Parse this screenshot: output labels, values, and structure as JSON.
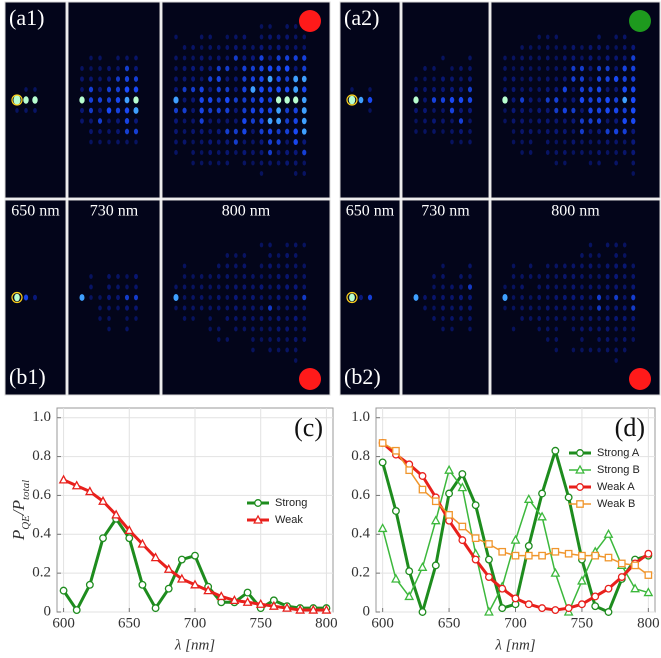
{
  "image_panels": {
    "labels": [
      "(a1)",
      "(a2)",
      "(b1)",
      "(b2)"
    ],
    "wavelengths": [
      "650 nm",
      "730 nm",
      "800 nm"
    ],
    "indicator_colors": [
      "#ff1a1a",
      "#1e9a1e",
      "#ff1a1a",
      "#ff1a1a"
    ]
  },
  "chart_data": [
    {
      "type": "line",
      "panel_label": "(c)",
      "y_label": [
        "P",
        "QE",
        "/P",
        "total"
      ],
      "x_label": "λ [nm]",
      "x": [
        600,
        610,
        620,
        630,
        640,
        650,
        660,
        670,
        680,
        690,
        700,
        710,
        720,
        730,
        740,
        750,
        760,
        770,
        780,
        790,
        800
      ],
      "series": [
        {
          "name": "Strong",
          "color": "#1e8c1e",
          "marker": "circle",
          "line_width": 3,
          "values": [
            0.11,
            0.01,
            0.14,
            0.38,
            0.48,
            0.38,
            0.14,
            0.02,
            0.12,
            0.27,
            0.29,
            0.13,
            0.05,
            0.05,
            0.1,
            0.02,
            0.06,
            0.03,
            0.02,
            0.02,
            0.02
          ]
        },
        {
          "name": "Weak",
          "color": "#e8201c",
          "marker": "triangle",
          "line_width": 3,
          "values": [
            0.68,
            0.65,
            0.62,
            0.57,
            0.5,
            0.42,
            0.35,
            0.28,
            0.22,
            0.17,
            0.14,
            0.11,
            0.08,
            0.06,
            0.05,
            0.04,
            0.03,
            0.02,
            0.01,
            0.01,
            0.01
          ]
        }
      ],
      "xlim": [
        595,
        805
      ],
      "xticks": [
        600,
        650,
        700,
        750,
        800
      ],
      "ylim": [
        0,
        1.05
      ],
      "yticks": [
        0,
        0.2,
        0.4,
        0.6,
        0.8,
        {
          "value": 1,
          "label": "1.0"
        }
      ],
      "grid": true,
      "legend": "right"
    },
    {
      "type": "line",
      "panel_label": "(d)",
      "x_label": "λ [nm]",
      "x": [
        600,
        610,
        620,
        630,
        640,
        650,
        660,
        670,
        680,
        690,
        700,
        710,
        720,
        730,
        740,
        750,
        760,
        770,
        780,
        790,
        800
      ],
      "series": [
        {
          "name": "Strong A",
          "color": "#1e8c1e",
          "marker": "circle",
          "line_width": 3,
          "values": [
            0.77,
            0.52,
            0.21,
            0.0,
            0.24,
            0.61,
            0.71,
            0.55,
            0.27,
            0.02,
            0.04,
            0.34,
            0.61,
            0.83,
            0.59,
            0.27,
            0.03,
            0.0,
            0.17,
            0.27,
            0.29
          ]
        },
        {
          "name": "Strong B",
          "color": "#3cb83c",
          "marker": "triangle",
          "line_width": 1.5,
          "values": [
            0.43,
            0.17,
            0.08,
            0.23,
            0.47,
            0.73,
            0.64,
            0.3,
            0.0,
            0.13,
            0.37,
            0.58,
            0.49,
            0.2,
            0.0,
            0.16,
            0.31,
            0.4,
            0.24,
            0.12,
            0.1
          ]
        },
        {
          "name": "Weak A",
          "color": "#e8201c",
          "marker": "circle",
          "line_width": 3,
          "values": [
            0.87,
            0.81,
            0.76,
            0.7,
            0.59,
            0.47,
            0.37,
            0.27,
            0.18,
            0.12,
            0.07,
            0.04,
            0.02,
            0.01,
            0.02,
            0.04,
            0.08,
            0.12,
            0.18,
            0.25,
            0.3
          ]
        },
        {
          "name": "Weak B",
          "color": "#f0962d",
          "marker": "square",
          "line_width": 1.5,
          "values": [
            0.87,
            0.83,
            0.73,
            0.63,
            0.57,
            0.5,
            0.44,
            0.38,
            0.35,
            0.31,
            0.29,
            0.29,
            0.29,
            0.31,
            0.3,
            0.29,
            0.29,
            0.28,
            0.25,
            0.24,
            0.19
          ]
        }
      ],
      "xlim": [
        595,
        805
      ],
      "xticks": [
        600,
        650,
        700,
        750,
        800
      ],
      "ylim": [
        0,
        1.05
      ],
      "yticks": [
        0,
        0.2,
        0.4,
        0.6,
        0.8,
        {
          "value": 1,
          "label": "1.0"
        }
      ],
      "grid": true,
      "legend": "upper right"
    }
  ]
}
